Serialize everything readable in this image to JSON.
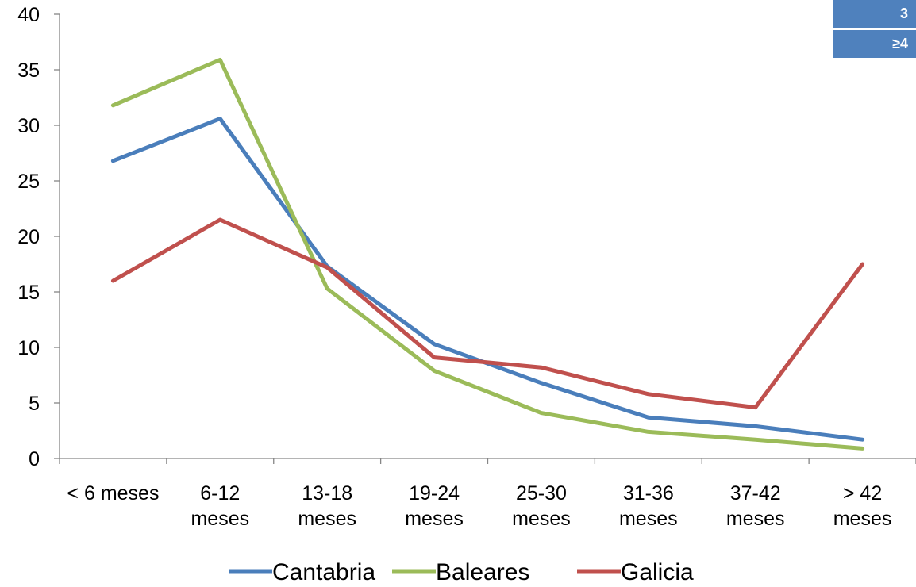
{
  "chart_data": {
    "type": "line",
    "categories": [
      [
        "< 6 meses"
      ],
      [
        "6-12",
        "meses"
      ],
      [
        "13-18",
        "meses"
      ],
      [
        "19-24",
        "meses"
      ],
      [
        "25-30",
        "meses"
      ],
      [
        "31-36",
        "meses"
      ],
      [
        "37-42",
        "meses"
      ],
      [
        "> 42",
        "meses"
      ]
    ],
    "series": [
      {
        "name": "Cantabria",
        "color": "#4a7ebb",
        "values": [
          26.8,
          30.6,
          17.3,
          10.3,
          6.8,
          3.7,
          2.9,
          1.7
        ]
      },
      {
        "name": "Baleares",
        "color": "#9bbb59",
        "values": [
          31.8,
          35.9,
          15.3,
          7.9,
          4.1,
          2.4,
          1.7,
          0.9
        ]
      },
      {
        "name": "Galicia",
        "color": "#c0504d",
        "values": [
          16.0,
          21.5,
          17.2,
          9.1,
          8.2,
          5.8,
          4.6,
          17.5
        ]
      }
    ],
    "ylim": [
      0,
      40
    ],
    "yticks": [
      0,
      5,
      10,
      15,
      20,
      25,
      30,
      35,
      40
    ],
    "grid": false,
    "legend_position": "bottom"
  },
  "badges": {
    "top": "3",
    "bottom": "≥4"
  }
}
